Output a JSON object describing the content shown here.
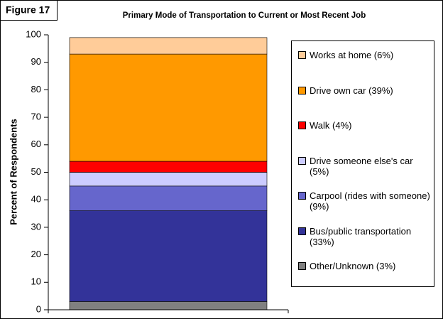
{
  "chart_data": {
    "type": "stacked_bar",
    "figure_label": "Figure 17",
    "title": "Primary Mode of Transportation to Current or Most Recent Job",
    "y_label": "Percent of Respondents",
    "categories": [
      null
    ],
    "series": [
      {
        "name": "Other/Unknown (3%)",
        "color": "#808080",
        "values": [
          3
        ]
      },
      {
        "name": "Bus/public transportation (33%)",
        "color": "#333399",
        "values": [
          33
        ]
      },
      {
        "name": "Carpool (rides with someone) (9%)",
        "color": "#6666cc",
        "values": [
          9
        ]
      },
      {
        "name": "Drive someone else's car (5%)",
        "color": "#ccccff",
        "values": [
          5
        ]
      },
      {
        "name": "Walk (4%)",
        "color": "#ff0000",
        "values": [
          4
        ]
      },
      {
        "name": "Drive own car (39%)",
        "color": "#ff9900",
        "values": [
          39
        ]
      },
      {
        "name": "Works at home (6%)",
        "color": "#ffcc99",
        "values": [
          6
        ]
      }
    ],
    "ylim": [
      0,
      100
    ],
    "yticks": [
      0,
      10,
      20,
      30,
      40,
      50,
      60,
      70,
      80,
      90,
      100
    ],
    "legend": "right"
  }
}
